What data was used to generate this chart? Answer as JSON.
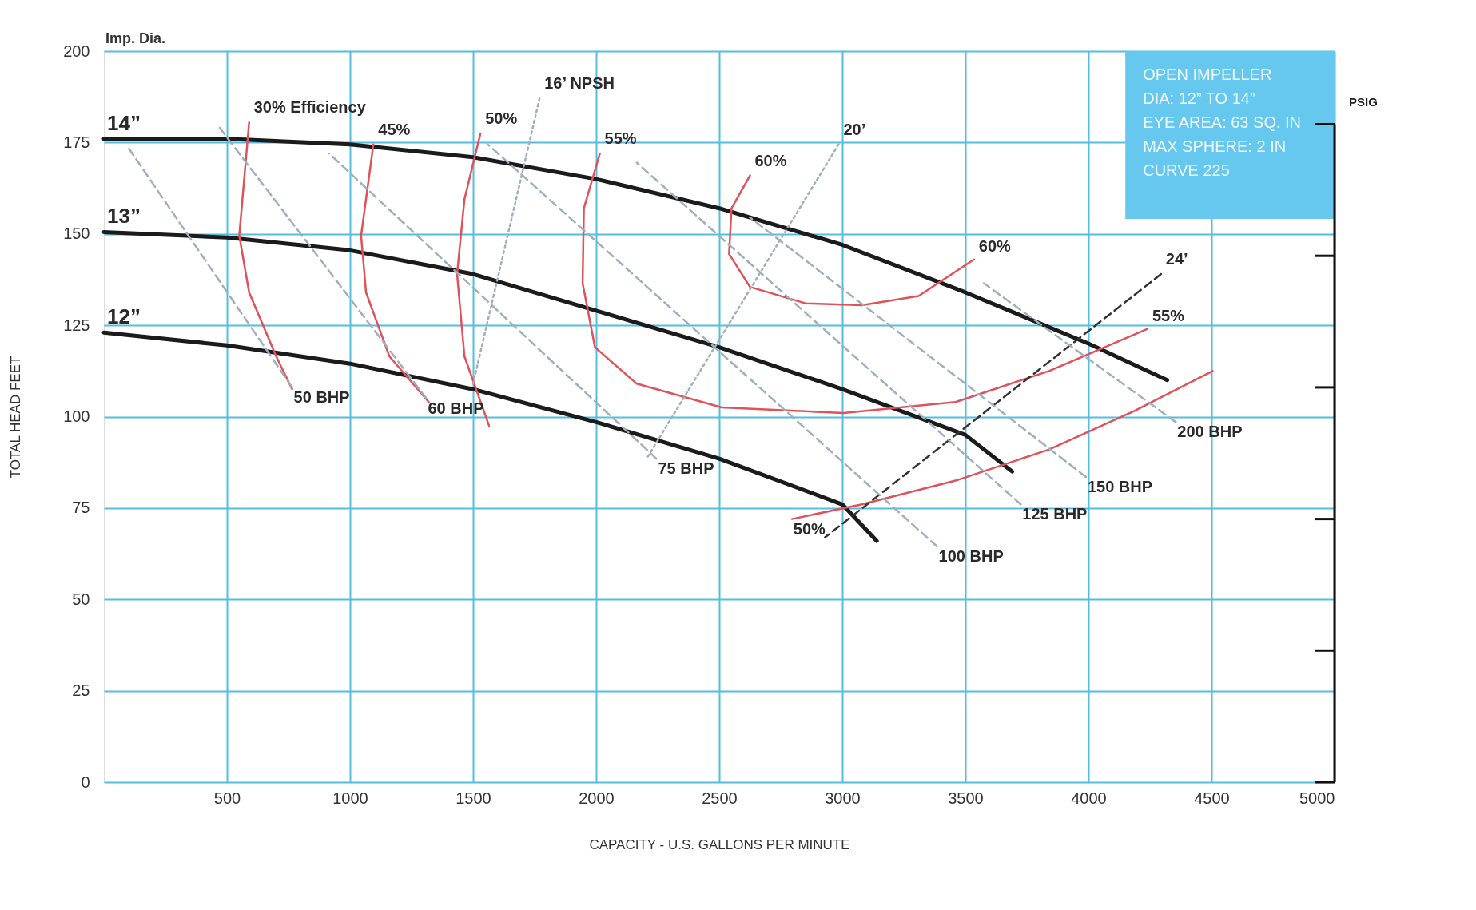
{
  "chart_data": {
    "type": "line",
    "xlabel": "CAPACITY - U.S. GALLONS PER MINUTE",
    "ylabel": "TOTAL HEAD FEET",
    "xlim": [
      0,
      5000
    ],
    "xticks": [
      500,
      1000,
      1500,
      2000,
      2500,
      3000,
      3500,
      4000,
      4500,
      5000
    ],
    "ylim": [
      0,
      200
    ],
    "yticks": [
      0,
      25,
      50,
      75,
      100,
      125,
      150,
      175,
      200
    ],
    "grid": true,
    "series": [
      {
        "name": "14”",
        "color": "#1b1b1b",
        "line_style": "solid",
        "x": [
          0,
          500,
          1000,
          1500,
          2000,
          2500,
          3000,
          3500,
          4000,
          4320
        ],
        "values": [
          176,
          176,
          174.5,
          171,
          165,
          157,
          147,
          134,
          120,
          110
        ]
      },
      {
        "name": "13”",
        "color": "#1b1b1b",
        "line_style": "solid",
        "x": [
          0,
          500,
          1000,
          1500,
          2000,
          2500,
          3000,
          3500,
          3690
        ],
        "values": [
          150.5,
          149,
          145.5,
          139,
          129,
          119,
          107.5,
          95,
          85
        ]
      },
      {
        "name": "12”",
        "color": "#1b1b1b",
        "line_style": "solid",
        "x": [
          0,
          500,
          1000,
          1500,
          2000,
          2500,
          3000,
          3140
        ],
        "values": [
          123,
          119.5,
          114.5,
          107.5,
          98.5,
          88.5,
          76,
          66
        ]
      },
      {
        "name": "30% Efficiency",
        "color": "#e0525a",
        "line_style": "solid",
        "x": [
          590,
          550,
          590,
          700,
          765
        ],
        "values": [
          180.5,
          149.5,
          134,
          116.5,
          107.5
        ]
      },
      {
        "name": "45%",
        "color": "#e0525a",
        "line_style": "solid",
        "x": [
          1095,
          1045,
          1065,
          1160,
          1320
        ],
        "values": [
          174.5,
          149.5,
          134,
          116.5,
          104
        ]
      },
      {
        "name": "50%",
        "color": "#e0525a",
        "line_style": "solid",
        "x": [
          1530,
          1465,
          1435,
          1465,
          1565
        ],
        "values": [
          177.5,
          159.5,
          139,
          116.5,
          97.5
        ]
      },
      {
        "name": "55%",
        "color": "#e0525a",
        "line_style": "solid",
        "x": [
          2015,
          1950,
          1945,
          1995,
          2165,
          2510,
          3005,
          3460,
          3840,
          4240
        ],
        "values": [
          172,
          157,
          136.5,
          119,
          109,
          102.5,
          101,
          104,
          112.5,
          124
        ]
      },
      {
        "name": "60%",
        "color": "#e0525a",
        "line_style": "solid",
        "x": [
          2625,
          2550,
          2540,
          2625,
          2850,
          3080,
          3310,
          3535
        ],
        "values": [
          166,
          157,
          144.5,
          135.5,
          131,
          130.5,
          133,
          143
        ]
      },
      {
        "name": "50%",
        "color": "#e0525a",
        "line_style": "solid",
        "x": [
          2795,
          3080,
          3460,
          3840,
          4185,
          4505
        ],
        "values": [
          72,
          76,
          82.5,
          91,
          101.5,
          112.5
        ]
      },
      {
        "name": "16’ NPSH",
        "color": "#9fb0bb",
        "line_style": "dotted",
        "x": [
          1770,
          1500
        ],
        "values": [
          187,
          109
        ]
      },
      {
        "name": "20’",
        "color": "#9fb0bb",
        "line_style": "dotted",
        "x": [
          2985,
          2205
        ],
        "values": [
          174.5,
          88.5
        ]
      },
      {
        "name": "24’",
        "color": "#333333",
        "line_style": "dashed",
        "x": [
          4295,
          2930
        ],
        "values": [
          139,
          67
        ]
      },
      {
        "name": "50 BHP",
        "color": "#9fb0bb",
        "line_style": "dashed",
        "x": [
          765,
          95
        ],
        "values": [
          108,
          174
        ]
      },
      {
        "name": "60 BHP",
        "color": "#9fb0bb",
        "line_style": "dashed",
        "x": [
          1310,
          465
        ],
        "values": [
          105,
          179.5
        ]
      },
      {
        "name": "75 BHP",
        "color": "#9fb0bb",
        "line_style": "dashed",
        "x": [
          2245,
          915
        ],
        "values": [
          88.5,
          172
        ]
      },
      {
        "name": "100 BHP",
        "color": "#9fb0bb",
        "line_style": "dashed",
        "x": [
          3385,
          1560
        ],
        "values": [
          64.5,
          174.5
        ]
      },
      {
        "name": "125 BHP",
        "color": "#9fb0bb",
        "line_style": "dashed",
        "x": [
          3725,
          2165
        ],
        "values": [
          76,
          169.5
        ]
      },
      {
        "name": "150 BHP",
        "color": "#9fb0bb",
        "line_style": "dashed",
        "x": [
          3990,
          2625
        ],
        "values": [
          83.5,
          154.5
        ]
      },
      {
        "name": "200 BHP",
        "color": "#9fb0bb",
        "line_style": "dashed",
        "x": [
          4355,
          3575
        ],
        "values": [
          98.5,
          136.5
        ]
      }
    ],
    "annotations": [
      "Imp. Dia.",
      "OPEN IMPELLER",
      "DIA: 12” TO 14”",
      "EYE AREA: 63 SQ. IN",
      "MAX SPHERE: 2 IN",
      "CURVE 225",
      "PSIG",
      {
        "text": "60%",
        "x": 3535,
        "y": 143
      },
      {
        "text": "55%",
        "x": 4240,
        "y": 124
      }
    ]
  }
}
